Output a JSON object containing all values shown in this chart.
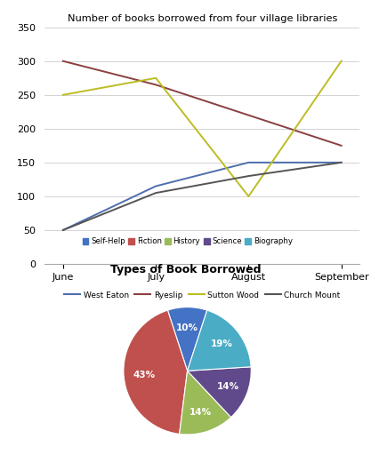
{
  "line_title": "Number of books borrowed from four village libraries",
  "months": [
    "June",
    "July",
    "August",
    "September"
  ],
  "series": {
    "West Eaton": [
      50,
      115,
      150,
      150
    ],
    "Ryeslip": [
      300,
      265,
      220,
      175
    ],
    "Sutton Wood": [
      250,
      275,
      100,
      300
    ],
    "Church Mount": [
      50,
      105,
      130,
      150
    ]
  },
  "line_colors": {
    "West Eaton": "#4E6FAD",
    "Ryeslip": "#8B4040",
    "Sutton Wood": "#BCBD22",
    "Church Mount": "#555555"
  },
  "ylim": [
    0,
    350
  ],
  "yticks": [
    0,
    50,
    100,
    150,
    200,
    250,
    300,
    350
  ],
  "pie_title": "Types of Book Borrowed",
  "pie_labels": [
    "Self-Help",
    "Fiction",
    "History",
    "Science",
    "Biography"
  ],
  "pie_values": [
    10,
    43,
    14,
    14,
    19
  ],
  "pie_colors": [
    "#4472C4",
    "#C0504D",
    "#9BBB59",
    "#604A8B",
    "#4BACC6"
  ],
  "pie_startangle": 72
}
